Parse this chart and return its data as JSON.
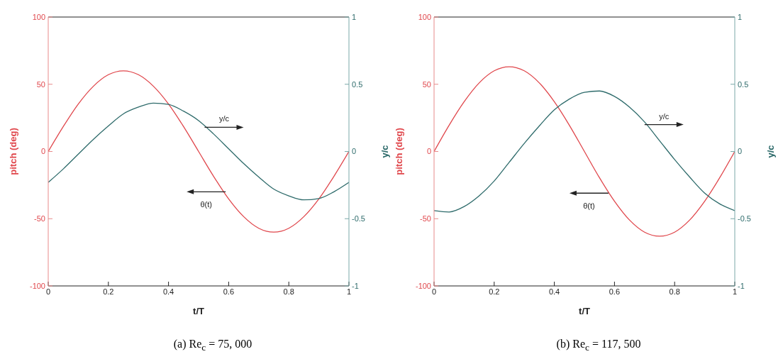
{
  "chart_data": [
    {
      "type": "line",
      "title": "(a) Re$_{c}$ = 75, 000",
      "xlabel": "t/T",
      "ylabel": "pitch (deg)",
      "y2label": "y/c",
      "x": [
        0,
        0.05,
        0.1,
        0.15,
        0.2,
        0.25,
        0.3,
        0.35,
        0.4,
        0.45,
        0.5,
        0.55,
        0.6,
        0.65,
        0.7,
        0.75,
        0.8,
        0.85,
        0.9,
        0.95,
        1
      ],
      "series": [
        {
          "color": "#e0474c",
          "values": [
            0,
            18.5,
            35.3,
            48.5,
            57.1,
            60,
            57.1,
            48.5,
            35.3,
            18.5,
            0,
            -18.5,
            -35.3,
            -48.5,
            -57.1,
            -60,
            -57.1,
            -48.5,
            -35.3,
            -18.5,
            0
          ]
        },
        {
          "color": "#2e6b6b",
          "axis": "y2",
          "values": [
            -0.23,
            -0.13,
            -0.02,
            0.09,
            0.19,
            0.28,
            0.33,
            0.36,
            0.35,
            0.3,
            0.23,
            0.13,
            0.02,
            -0.09,
            -0.19,
            -0.28,
            -0.33,
            -0.36,
            -0.35,
            -0.3,
            -0.23
          ]
        }
      ],
      "annotations": [
        {
          "text": "θ(t)",
          "x": 0.59,
          "y": -30
        },
        {
          "text": "y/c",
          "x": 0.52,
          "y": 18
        }
      ],
      "xlim": [
        0,
        1
      ],
      "xticks": [
        0,
        0.2,
        0.4,
        0.6,
        0.8,
        1
      ],
      "ylim": [
        -100,
        100
      ],
      "yticks": [
        -100,
        -50,
        0,
        50,
        100
      ],
      "y2lim": [
        -1,
        1
      ],
      "y2ticks": [
        -1,
        -0.5,
        0,
        0.5,
        1
      ],
      "grid": false,
      "legend": false
    },
    {
      "type": "line",
      "title": "(b) Re$_{c}$ = 117, 500",
      "xlabel": "t/T",
      "ylabel": "pitch (deg)",
      "y2label": "y/c",
      "x": [
        0,
        0.05,
        0.1,
        0.15,
        0.2,
        0.25,
        0.3,
        0.35,
        0.4,
        0.45,
        0.5,
        0.55,
        0.6,
        0.65,
        0.7,
        0.75,
        0.8,
        0.85,
        0.9,
        0.95,
        1
      ],
      "series": [
        {
          "color": "#e0474c",
          "values": [
            0,
            19.5,
            37,
            51,
            60,
            63,
            60,
            51,
            37,
            19.5,
            0,
            -19.5,
            -37,
            -51,
            -60,
            -63,
            -60,
            -51,
            -37,
            -19.5,
            0
          ]
        },
        {
          "color": "#2e6b6b",
          "axis": "y2",
          "values": [
            -0.44,
            -0.45,
            -0.41,
            -0.33,
            -0.22,
            -0.08,
            0.06,
            0.19,
            0.31,
            0.39,
            0.44,
            0.45,
            0.41,
            0.33,
            0.22,
            0.08,
            -0.06,
            -0.19,
            -0.31,
            -0.39,
            -0.44
          ]
        }
      ],
      "annotations": [
        {
          "text": "θ(t)",
          "x": 0.58,
          "y": -31
        },
        {
          "text": "y/c",
          "x": 0.7,
          "y": 20
        }
      ],
      "xlim": [
        0,
        1
      ],
      "xticks": [
        0,
        0.2,
        0.4,
        0.6,
        0.8,
        1
      ],
      "ylim": [
        -100,
        100
      ],
      "yticks": [
        -100,
        -50,
        0,
        50,
        100
      ],
      "y2lim": [
        -1,
        1
      ],
      "y2ticks": [
        -1,
        -0.5,
        0,
        0.5,
        1
      ],
      "grid": false,
      "legend": false
    }
  ]
}
